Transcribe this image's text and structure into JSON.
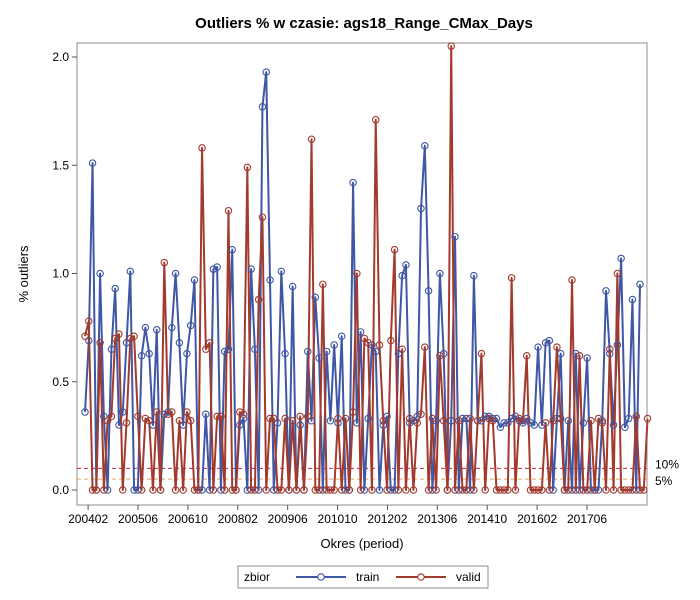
{
  "chart_data": {
    "type": "line",
    "title": "Outliers % w czasie: ags18_Range_CMax_Days",
    "xlabel": "Okres (period)",
    "ylabel": "% outliers",
    "ylim": [
      0,
      2.05
    ],
    "yticks": [
      "0.0",
      "0.5",
      "1.0",
      "1.5",
      "2.0"
    ],
    "xtick_labels": [
      "200402",
      "200506",
      "200610",
      "200802",
      "200906",
      "201010",
      "201202",
      "201306",
      "201410",
      "201602",
      "201706"
    ],
    "x_start": "200401",
    "x_end": "201811",
    "grid": false,
    "reference_lines": [
      {
        "label": "10%",
        "value": 0.1,
        "color": "#c4233b",
        "style": "dashed"
      },
      {
        "label": "5%",
        "value": 0.05,
        "color": "#e8a25a",
        "style": "dashed"
      }
    ],
    "legend": {
      "title": "zbior",
      "position": "bottom"
    },
    "series": [
      {
        "name": "train",
        "color": "#3f57a4",
        "values": [
          0.36,
          0.69,
          1.51,
          0.0,
          1.0,
          0.34,
          0.0,
          0.65,
          0.93,
          0.3,
          0.36,
          0.68,
          1.01,
          0.0,
          0.0,
          0.62,
          0.75,
          0.63,
          0.3,
          0.74,
          0.0,
          0.35,
          0.36,
          0.75,
          1.0,
          0.68,
          0.3,
          0.63,
          0.76,
          0.97,
          0.0,
          0.0,
          0.35,
          0.0,
          1.02,
          1.03,
          0.0,
          0.64,
          0.65,
          1.11,
          0.0,
          0.3,
          0.33,
          0.0,
          1.02,
          0.65,
          0.0,
          1.77,
          1.93,
          0.97,
          0.0,
          0.31,
          1.01,
          0.63,
          0.0,
          0.94,
          0.0,
          0.3,
          0.0,
          0.64,
          0.32,
          0.89,
          0.61,
          0.0,
          0.64,
          0.32,
          0.67,
          0.31,
          0.71,
          0.0,
          0.0,
          1.42,
          0.31,
          0.73,
          0.0,
          0.33,
          0.67,
          0.64,
          0.0,
          0.3,
          0.34,
          0.0,
          0.0,
          0.63,
          0.99,
          1.04,
          0.31,
          0.32,
          0.34,
          1.3,
          1.59,
          0.92,
          0.0,
          0.32,
          1.0,
          0.63,
          0.0,
          0.32,
          1.17,
          0.0,
          0.33,
          0.33,
          0.0,
          0.99,
          0.32,
          0.32,
          0.34,
          0.34,
          0.33,
          0.33,
          0.29,
          0.31,
          0.31,
          0.33,
          0.34,
          0.32,
          0.31,
          0.33,
          0.31,
          0.3,
          0.66,
          0.3,
          0.68,
          0.69,
          0.0,
          0.33,
          0.63,
          0.0,
          0.32,
          0.0,
          0.63,
          0.0,
          0.31,
          0.61,
          0.0,
          0.0,
          0.0,
          0.32,
          0.92,
          0.63,
          0.3,
          0.67,
          1.07,
          0.29,
          0.33,
          0.88,
          0.0,
          0.95
        ]
      },
      {
        "name": "valid",
        "color": "#a23a2e",
        "values": [
          0.71,
          0.78,
          0.0,
          0.0,
          0.68,
          0.0,
          0.32,
          0.34,
          0.7,
          0.72,
          0.0,
          0.31,
          0.7,
          0.71,
          0.34,
          0.0,
          0.33,
          0.32,
          0.0,
          0.36,
          0.0,
          1.05,
          0.35,
          0.36,
          0.0,
          0.32,
          0.0,
          0.36,
          0.32,
          0.0,
          0.0,
          1.58,
          0.65,
          0.68,
          0.0,
          0.34,
          0.34,
          0.0,
          1.29,
          0.0,
          0.0,
          0.36,
          0.35,
          1.49,
          0.0,
          0.0,
          0.88,
          1.26,
          0.0,
          0.33,
          0.33,
          0.0,
          0.0,
          0.33,
          0.0,
          0.32,
          0.0,
          0.34,
          0.0,
          0.34,
          1.62,
          0.0,
          0.0,
          0.95,
          0.0,
          0.0,
          0.0,
          0.33,
          0.0,
          0.33,
          0.0,
          0.36,
          1.0,
          0.0,
          0.7,
          0.68,
          0.0,
          1.71,
          0.67,
          0.32,
          0.0,
          0.69,
          1.11,
          0.0,
          0.65,
          0.0,
          0.33,
          0.0,
          0.31,
          0.35,
          0.66,
          0.0,
          0.33,
          0.0,
          0.62,
          0.32,
          0.0,
          2.05,
          0.0,
          0.32,
          0.0,
          0.0,
          0.33,
          0.0,
          0.32,
          0.63,
          0.0,
          0.33,
          0.32,
          0.0,
          0.0,
          0.0,
          0.0,
          0.98,
          0.0,
          0.33,
          0.32,
          0.62,
          0.0,
          0.0,
          0.0,
          0.0,
          0.31,
          0.0,
          0.32,
          0.66,
          0.33,
          0.0,
          0.0,
          0.97,
          0.0,
          0.62,
          0.0,
          0.0,
          0.32,
          0.0,
          0.33,
          0.31,
          0.0,
          0.65,
          0.0,
          1.0,
          0.0,
          0.0,
          0.0,
          0.0,
          0.34,
          0.0,
          0.0,
          0.33
        ]
      }
    ]
  }
}
